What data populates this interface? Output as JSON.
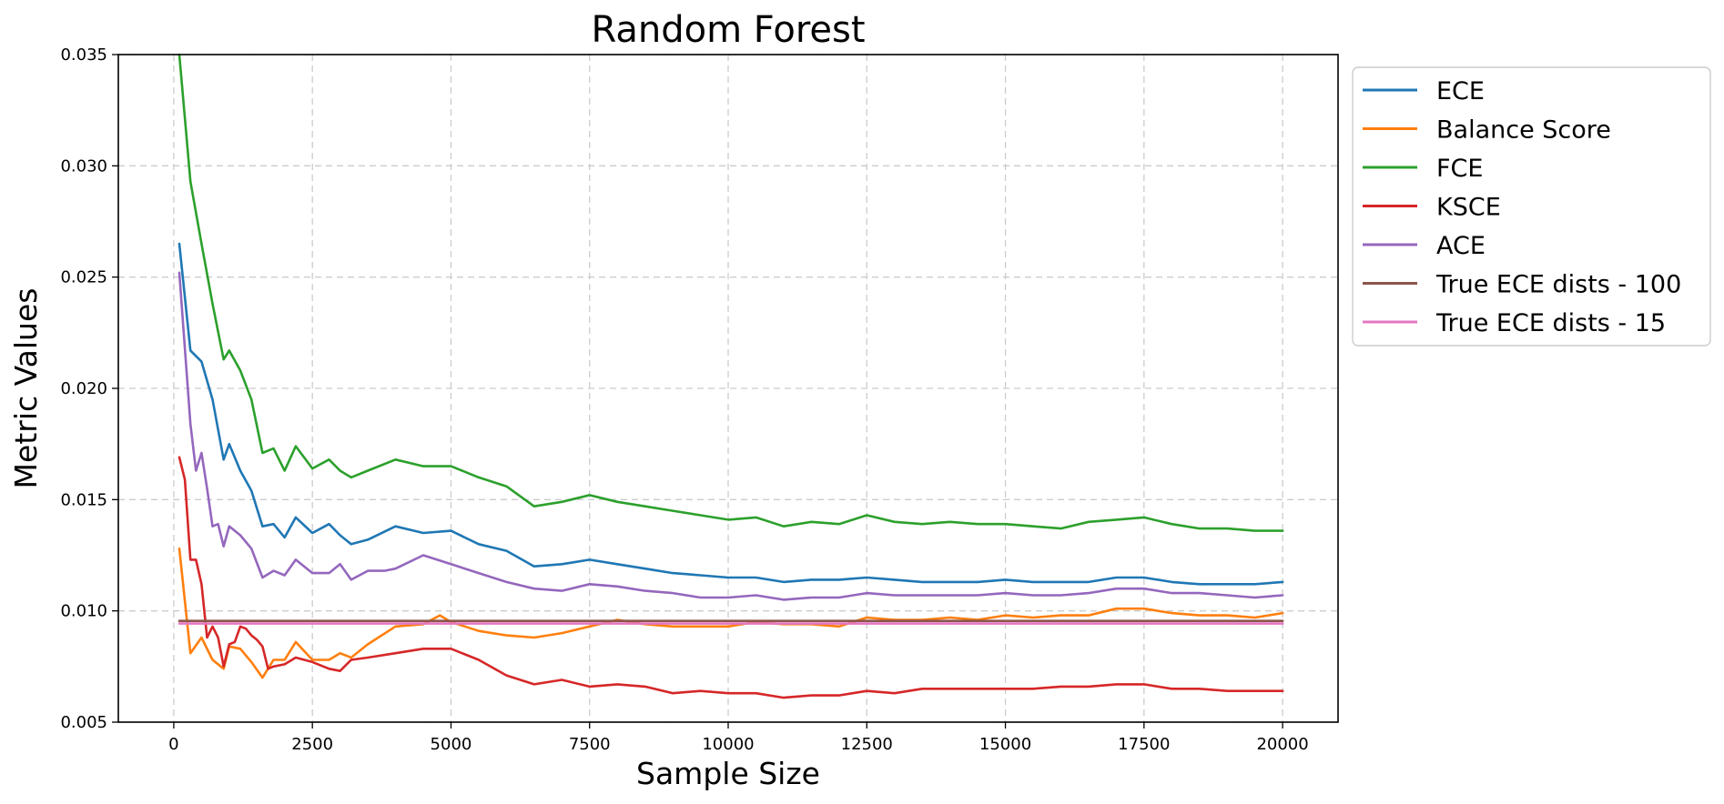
{
  "chart_data": {
    "type": "line",
    "title": "Random Forest",
    "xlabel": "Sample Size",
    "ylabel": "Metric Values",
    "xlim": [
      -1000,
      21000
    ],
    "ylim": [
      0.005,
      0.035
    ],
    "xticks": [
      0,
      2500,
      5000,
      7500,
      10000,
      12500,
      15000,
      17500,
      20000
    ],
    "xtick_labels": [
      "0",
      "2500",
      "5000",
      "7500",
      "10000",
      "12500",
      "15000",
      "17500",
      "20000"
    ],
    "yticks": [
      0.005,
      0.01,
      0.015,
      0.02,
      0.025,
      0.03,
      0.035
    ],
    "ytick_labels": [
      "0.005",
      "0.010",
      "0.015",
      "0.020",
      "0.025",
      "0.030",
      "0.035"
    ],
    "grid": true,
    "legend_position": "outside-right-top",
    "series": [
      {
        "name": "ECE",
        "color": "#1f77b4",
        "x": [
          100,
          300,
          500,
          700,
          900,
          1000,
          1200,
          1400,
          1600,
          1800,
          2000,
          2200,
          2500,
          2800,
          3000,
          3200,
          3500,
          4000,
          4500,
          5000,
          5500,
          6000,
          6500,
          7000,
          7500,
          8000,
          8500,
          9000,
          9500,
          10000,
          10500,
          11000,
          11500,
          12000,
          12500,
          13000,
          13500,
          14000,
          14500,
          15000,
          15500,
          16000,
          16500,
          17000,
          17500,
          18000,
          18500,
          19000,
          19500,
          20000
        ],
        "y": [
          0.0265,
          0.0217,
          0.0212,
          0.0195,
          0.0168,
          0.0175,
          0.0163,
          0.0154,
          0.0138,
          0.0139,
          0.0133,
          0.0142,
          0.0135,
          0.0139,
          0.0134,
          0.013,
          0.0132,
          0.0138,
          0.0135,
          0.0136,
          0.013,
          0.0127,
          0.012,
          0.0121,
          0.0123,
          0.0121,
          0.0119,
          0.0117,
          0.0116,
          0.0115,
          0.0115,
          0.0113,
          0.0114,
          0.0114,
          0.0115,
          0.0114,
          0.0113,
          0.0113,
          0.0113,
          0.0114,
          0.0113,
          0.0113,
          0.0113,
          0.0115,
          0.0115,
          0.0113,
          0.0112,
          0.0112,
          0.0112,
          0.0113
        ]
      },
      {
        "name": "Balance Score",
        "color": "#ff7f0e",
        "x": [
          100,
          300,
          500,
          700,
          900,
          1000,
          1200,
          1400,
          1600,
          1800,
          2000,
          2200,
          2500,
          2800,
          3000,
          3200,
          3500,
          4000,
          4500,
          4800,
          5000,
          5500,
          6000,
          6500,
          7000,
          7500,
          8000,
          8500,
          9000,
          9500,
          10000,
          10500,
          11000,
          11500,
          12000,
          12500,
          13000,
          13500,
          14000,
          14500,
          15000,
          15500,
          16000,
          16500,
          17000,
          17500,
          18000,
          18500,
          19000,
          19500,
          20000
        ],
        "y": [
          0.0128,
          0.0081,
          0.0088,
          0.0078,
          0.0074,
          0.0084,
          0.0083,
          0.0077,
          0.007,
          0.0078,
          0.0078,
          0.0086,
          0.0078,
          0.0078,
          0.0081,
          0.0079,
          0.0085,
          0.0093,
          0.0094,
          0.0098,
          0.0095,
          0.0091,
          0.0089,
          0.0088,
          0.009,
          0.0093,
          0.0096,
          0.0094,
          0.0093,
          0.0093,
          0.0093,
          0.0095,
          0.0094,
          0.0094,
          0.0093,
          0.0097,
          0.0096,
          0.0096,
          0.0097,
          0.0096,
          0.0098,
          0.0097,
          0.0098,
          0.0098,
          0.0101,
          0.0101,
          0.0099,
          0.0098,
          0.0098,
          0.0097,
          0.0099
        ]
      },
      {
        "name": "FCE",
        "color": "#2ca02c",
        "x": [
          100,
          300,
          500,
          700,
          900,
          1000,
          1200,
          1400,
          1600,
          1800,
          2000,
          2200,
          2500,
          2800,
          3000,
          3200,
          3500,
          4000,
          4500,
          5000,
          5500,
          6000,
          6500,
          7000,
          7500,
          8000,
          8500,
          9000,
          9500,
          10000,
          10500,
          11000,
          11500,
          12000,
          12500,
          13000,
          13500,
          14000,
          14500,
          15000,
          15500,
          16000,
          16500,
          17000,
          17500,
          18000,
          18500,
          19000,
          19500,
          20000
        ],
        "y": [
          0.035,
          0.0293,
          0.0265,
          0.0238,
          0.0213,
          0.0217,
          0.0208,
          0.0195,
          0.0171,
          0.0173,
          0.0163,
          0.0174,
          0.0164,
          0.0168,
          0.0163,
          0.016,
          0.0163,
          0.0168,
          0.0165,
          0.0165,
          0.016,
          0.0156,
          0.0147,
          0.0149,
          0.0152,
          0.0149,
          0.0147,
          0.0145,
          0.0143,
          0.0141,
          0.0142,
          0.0138,
          0.014,
          0.0139,
          0.0143,
          0.014,
          0.0139,
          0.014,
          0.0139,
          0.0139,
          0.0138,
          0.0137,
          0.014,
          0.0141,
          0.0142,
          0.0139,
          0.0137,
          0.0137,
          0.0136,
          0.0136
        ]
      },
      {
        "name": "KSCE",
        "color": "#d62728",
        "x": [
          100,
          200,
          300,
          400,
          500,
          600,
          700,
          800,
          900,
          1000,
          1100,
          1200,
          1300,
          1400,
          1500,
          1600,
          1700,
          1800,
          2000,
          2200,
          2500,
          2800,
          3000,
          3200,
          3500,
          4000,
          4500,
          5000,
          5500,
          6000,
          6500,
          7000,
          7500,
          8000,
          8500,
          9000,
          9500,
          10000,
          10500,
          11000,
          11500,
          12000,
          12500,
          13000,
          13500,
          14000,
          14500,
          15000,
          15500,
          16000,
          16500,
          17000,
          17500,
          18000,
          18500,
          19000,
          19500,
          20000
        ],
        "y": [
          0.0169,
          0.0159,
          0.0123,
          0.0123,
          0.0112,
          0.0088,
          0.0093,
          0.0088,
          0.0075,
          0.0085,
          0.0086,
          0.0093,
          0.0092,
          0.0089,
          0.0087,
          0.0084,
          0.0074,
          0.0075,
          0.0076,
          0.0079,
          0.0077,
          0.0074,
          0.0073,
          0.0078,
          0.0079,
          0.0081,
          0.0083,
          0.0083,
          0.0078,
          0.0071,
          0.0067,
          0.0069,
          0.0066,
          0.0067,
          0.0066,
          0.0063,
          0.0064,
          0.0063,
          0.0063,
          0.0061,
          0.0062,
          0.0062,
          0.0064,
          0.0063,
          0.0065,
          0.0065,
          0.0065,
          0.0065,
          0.0065,
          0.0066,
          0.0066,
          0.0067,
          0.0067,
          0.0065,
          0.0065,
          0.0064,
          0.0064,
          0.0064
        ]
      },
      {
        "name": "ACE",
        "color": "#9467bd",
        "x": [
          100,
          300,
          400,
          500,
          600,
          700,
          800,
          900,
          1000,
          1200,
          1400,
          1600,
          1800,
          2000,
          2200,
          2500,
          2800,
          3000,
          3200,
          3500,
          3800,
          4000,
          4500,
          5000,
          5500,
          6000,
          6500,
          7000,
          7500,
          8000,
          8500,
          9000,
          9500,
          10000,
          10500,
          11000,
          11500,
          12000,
          12500,
          13000,
          13500,
          14000,
          14500,
          15000,
          15500,
          16000,
          16500,
          17000,
          17500,
          18000,
          18500,
          19000,
          19500,
          20000
        ],
        "y": [
          0.0252,
          0.0184,
          0.0163,
          0.0171,
          0.0155,
          0.0138,
          0.0139,
          0.0129,
          0.0138,
          0.0134,
          0.0128,
          0.0115,
          0.0118,
          0.0116,
          0.0123,
          0.0117,
          0.0117,
          0.0121,
          0.0114,
          0.0118,
          0.0118,
          0.0119,
          0.0125,
          0.0121,
          0.0117,
          0.0113,
          0.011,
          0.0109,
          0.0112,
          0.0111,
          0.0109,
          0.0108,
          0.0106,
          0.0106,
          0.0107,
          0.0105,
          0.0106,
          0.0106,
          0.0108,
          0.0107,
          0.0107,
          0.0107,
          0.0107,
          0.0108,
          0.0107,
          0.0107,
          0.0108,
          0.011,
          0.011,
          0.0108,
          0.0108,
          0.0107,
          0.0106,
          0.0107
        ]
      },
      {
        "name": "True ECE dists - 100",
        "color": "#8c564b",
        "x": [
          100,
          20000
        ],
        "y": [
          0.00955,
          0.00955
        ]
      },
      {
        "name": "True ECE dists - 15",
        "color": "#e377c2",
        "x": [
          100,
          20000
        ],
        "y": [
          0.00943,
          0.00943
        ]
      }
    ]
  }
}
